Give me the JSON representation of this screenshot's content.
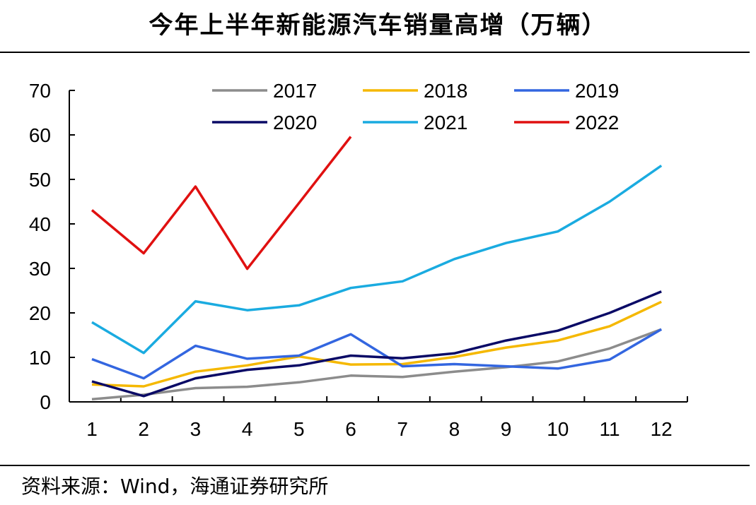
{
  "header": {
    "title": "今年上半年新能源汽车销量高增（万辆）"
  },
  "footer": {
    "source": "资料来源：Wind，海通证券研究所"
  },
  "chart_data": {
    "type": "line",
    "title": "今年上半年新能源汽车销量高增（万辆）",
    "xlabel": "",
    "ylabel": "",
    "x": [
      1,
      2,
      3,
      4,
      5,
      6,
      7,
      8,
      9,
      10,
      11,
      12
    ],
    "ylim": [
      0,
      70
    ],
    "yticks": [
      0,
      10,
      20,
      30,
      40,
      50,
      60,
      70
    ],
    "grid": false,
    "legend_position": "top",
    "series": [
      {
        "name": "2017",
        "color": "#8c8c8c",
        "values": [
          0.6,
          1.6,
          3.1,
          3.4,
          4.4,
          5.9,
          5.6,
          6.8,
          7.8,
          9.1,
          12.0,
          16.3
        ]
      },
      {
        "name": "2018",
        "color": "#f5b800",
        "values": [
          3.9,
          3.5,
          6.8,
          8.2,
          10.2,
          8.4,
          8.5,
          10.1,
          12.2,
          13.8,
          17.0,
          22.5
        ]
      },
      {
        "name": "2019",
        "color": "#3366e0",
        "values": [
          9.6,
          5.3,
          12.6,
          9.7,
          10.4,
          15.2,
          8.0,
          8.5,
          8.0,
          7.5,
          9.5,
          16.3
        ]
      },
      {
        "name": "2020",
        "color": "#0a0a66",
        "values": [
          4.6,
          1.3,
          5.3,
          7.2,
          8.2,
          10.4,
          9.8,
          10.9,
          13.8,
          16.0,
          20.0,
          24.8
        ]
      },
      {
        "name": "2021",
        "color": "#1aabe0",
        "values": [
          17.9,
          11.0,
          22.6,
          20.6,
          21.7,
          25.6,
          27.1,
          32.1,
          35.7,
          38.3,
          45.0,
          53.1
        ]
      },
      {
        "name": "2022",
        "color": "#e01010",
        "values": [
          43.1,
          33.4,
          48.4,
          29.9,
          44.7,
          59.6,
          null,
          null,
          null,
          null,
          null,
          null
        ]
      }
    ]
  }
}
